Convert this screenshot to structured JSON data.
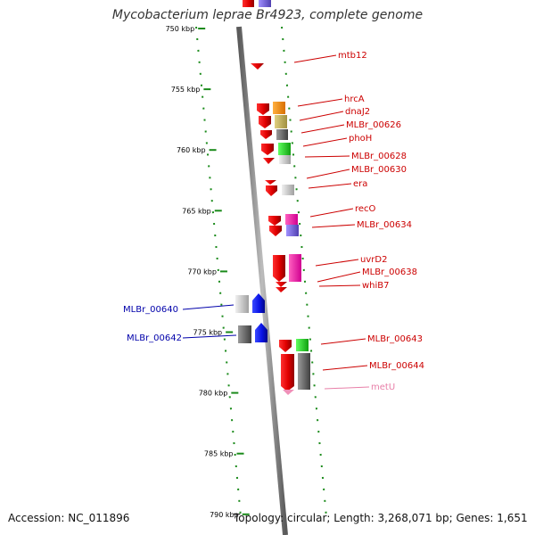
{
  "title": "Mycobacterium leprae Br4923, complete genome",
  "footer": {
    "accession": "Accession: NC_011896",
    "summary": "Topology: circular; Length: 3,268,071 bp; Genes: 1,651"
  },
  "ruler": {
    "unit": "kbp",
    "ticks": [
      "750 kbp",
      "755 kbp",
      "760 kbp",
      "765 kbp",
      "770 kbp",
      "775 kbp",
      "780 kbp",
      "785 kbp",
      "790 kbp"
    ]
  },
  "colors": {
    "backbone": "#7f7f7f",
    "tick": "#1a8a1a",
    "cds_forward": "#ee0000",
    "cds_reverse": "#0a14e6",
    "label_forward": "#cc0000",
    "label_reverse": "#0000aa",
    "label_rna": "#e87fa8"
  },
  "genes": {
    "reverse": [
      {
        "label": "MLBr_00640"
      },
      {
        "label": "MLBr_00642"
      }
    ],
    "forward": [
      {
        "label": "mtb12"
      },
      {
        "label": "hrcA"
      },
      {
        "label": "dnaJ2"
      },
      {
        "label": "MLBr_00626"
      },
      {
        "label": "phoH"
      },
      {
        "label": "MLBr_00628"
      },
      {
        "label": "MLBr_00630"
      },
      {
        "label": "era"
      },
      {
        "label": "recO"
      },
      {
        "label": "MLBr_00634"
      },
      {
        "label": "uvrD2"
      },
      {
        "label": "MLBr_00638"
      },
      {
        "label": "whiB7"
      },
      {
        "label": "MLBr_00643"
      },
      {
        "label": "MLBr_00644"
      },
      {
        "label": "metU"
      }
    ]
  }
}
